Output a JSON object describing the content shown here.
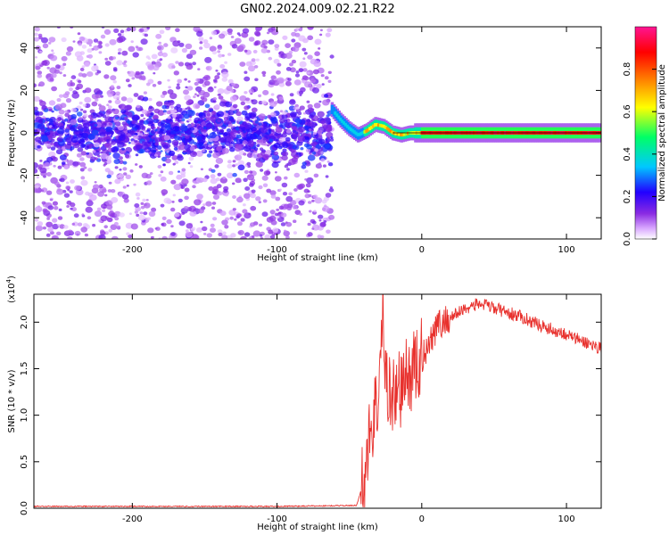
{
  "title": "GN02.2024.009.02.21.R22",
  "chart_data": [
    {
      "type": "heatmap",
      "xlabel": "Height of straight line (km)",
      "ylabel": "Frequency (Hz)",
      "xlim": [
        -268,
        124
      ],
      "ylim": [
        -50,
        50
      ],
      "x_ticks": [
        -200,
        -100,
        0,
        100
      ],
      "y_ticks": [
        -40,
        -20,
        0,
        20,
        40
      ],
      "grid": false,
      "colorbar": {
        "label": "Normalized spectral amplitude",
        "range": [
          0,
          1
        ],
        "ticks": [
          0.0,
          0.2,
          0.4,
          0.6,
          0.8
        ],
        "tick_labels": [
          "0.0",
          "0.2",
          "0.4",
          "0.6",
          "0.8"
        ],
        "colors": [
          "#ffffff",
          "#d9a8ff",
          "#8a2be2",
          "#2200ff",
          "#00c8ff",
          "#00ff66",
          "#ffff00",
          "#ff7700",
          "#ff0000",
          "#ff1493"
        ]
      },
      "regions": [
        {
          "x_range": [
            -268,
            -62
          ],
          "description_level": "noise scatter, mostly amplitude 0.05-0.35, denser near 0 Hz"
        },
        {
          "x_range": [
            -62,
            124
          ],
          "description_level": "coherent signal near 0 Hz, amplitude rising to 0.9"
        }
      ],
      "ridge": [
        {
          "x": -62,
          "y": 11
        },
        {
          "x": -56,
          "y": 6
        },
        {
          "x": -50,
          "y": 2
        },
        {
          "x": -44,
          "y": -1
        },
        {
          "x": -38,
          "y": 1
        },
        {
          "x": -32,
          "y": 4
        },
        {
          "x": -26,
          "y": 3
        },
        {
          "x": -20,
          "y": 0
        },
        {
          "x": -14,
          "y": -1
        },
        {
          "x": -8,
          "y": 0
        },
        {
          "x": 0,
          "y": 0
        },
        {
          "x": 124,
          "y": 0
        }
      ]
    },
    {
      "type": "line",
      "xlabel": "Height of straight line (km)",
      "ylabel": "SNR (10 * v/v)",
      "y_multiplier": "(x10",
      "y_multiplier_exp": "4",
      "y_multiplier_close": ")",
      "xlim": [
        -268,
        124
      ],
      "ylim": [
        0,
        2.3
      ],
      "x_ticks": [
        -200,
        -100,
        0,
        100
      ],
      "y_ticks": [
        0.0,
        0.5,
        1.0,
        1.5,
        2.0
      ],
      "y_tick_labels": [
        "0.0",
        "0.5",
        "1.0",
        "1.5",
        "2.0"
      ],
      "grid": false,
      "color": "#e8312d",
      "series": [
        {
          "x": [
            -268,
            -200,
            -100,
            -45,
            -40,
            -35,
            -30,
            -27,
            -25,
            -20,
            -15,
            -10,
            -5,
            0,
            5,
            10,
            20,
            30,
            40,
            50,
            60,
            70,
            80,
            90,
            100,
            110,
            124
          ],
          "values": [
            0.02,
            0.02,
            0.02,
            0.03,
            0.3,
            0.9,
            1.2,
            2.1,
            1.4,
            1.2,
            1.3,
            1.4,
            1.5,
            1.6,
            1.8,
            1.95,
            2.05,
            2.15,
            2.2,
            2.15,
            2.1,
            2.05,
            1.98,
            1.92,
            1.87,
            1.8,
            1.72
          ]
        }
      ]
    }
  ]
}
